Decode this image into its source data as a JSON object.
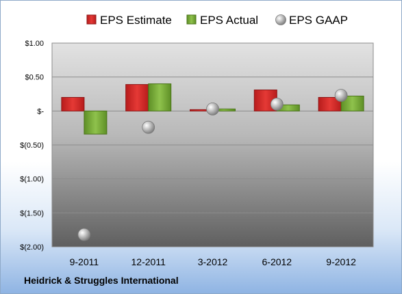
{
  "company_name": "Heidrick & Struggles International",
  "chart_data": {
    "type": "bar",
    "categories": [
      "9-2011",
      "12-2011",
      "3-2012",
      "6-2012",
      "9-2012"
    ],
    "series": [
      {
        "name": "EPS Estimate",
        "kind": "bar",
        "color": "#d42a2a",
        "values": [
          0.2,
          0.39,
          0.02,
          0.31,
          0.2
        ]
      },
      {
        "name": "EPS Actual",
        "kind": "bar",
        "color": "#7eaf3c",
        "values": [
          -0.34,
          0.4,
          0.03,
          0.09,
          0.22
        ]
      },
      {
        "name": "EPS GAAP",
        "kind": "scatter",
        "color": "#a6a6a6",
        "values": [
          -1.82,
          -0.24,
          0.03,
          0.1,
          0.23
        ]
      }
    ],
    "y_ticks": [
      {
        "value": 1.0,
        "label": "$1.00"
      },
      {
        "value": 0.5,
        "label": "$0.50"
      },
      {
        "value": 0.0,
        "label": "$-"
      },
      {
        "value": -0.5,
        "label": "$(0.50)"
      },
      {
        "value": -1.0,
        "label": "$(1.00)"
      },
      {
        "value": -1.5,
        "label": "$(1.50)"
      },
      {
        "value": -2.0,
        "label": "$(2.00)"
      }
    ],
    "ylim": [
      -2.0,
      1.0
    ],
    "grid": true,
    "legend_position": "top"
  }
}
